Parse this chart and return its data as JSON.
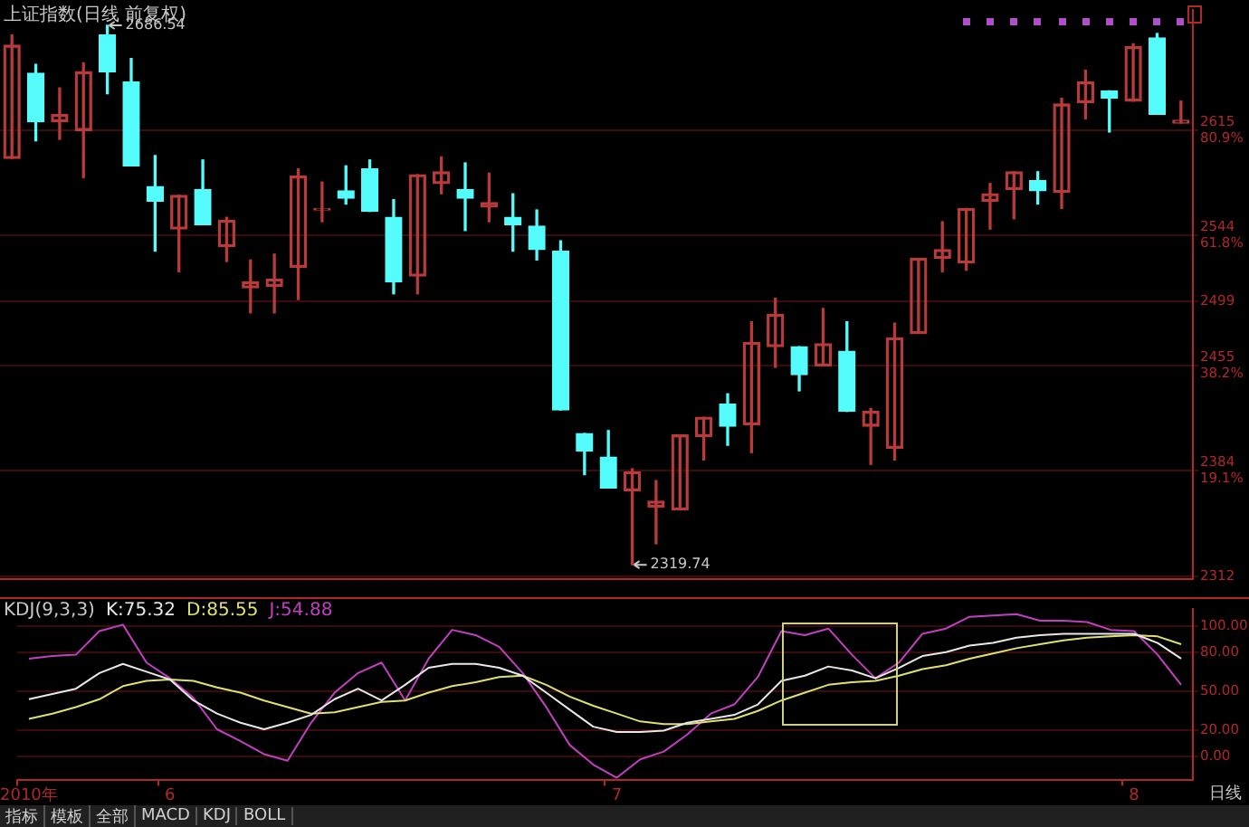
{
  "chart_data": [
    {
      "type": "candlestick",
      "title": "上证指数(日线 前复权)",
      "categories": [
        null,
        null,
        null,
        null,
        null,
        null,
        null,
        null,
        null,
        null,
        null,
        null,
        null,
        null,
        null,
        null,
        null,
        null,
        null,
        null,
        null,
        null,
        null,
        null,
        null,
        null,
        null,
        null,
        null,
        null,
        null,
        null,
        null,
        null,
        null,
        null,
        null,
        null,
        null,
        null,
        null,
        null,
        null,
        null,
        null,
        null,
        null,
        null,
        null,
        null
      ],
      "ohlc": [
        [
          2596,
          2680,
          2596,
          2673
        ],
        [
          2654,
          2660,
          2608,
          2621
        ],
        [
          2621,
          2644,
          2609,
          2626
        ],
        [
          2615,
          2661,
          2583,
          2655
        ],
        [
          2680,
          2686.54,
          2640,
          2655
        ],
        [
          2648,
          2664,
          2591,
          2591
        ],
        [
          2577,
          2598,
          2533,
          2567
        ],
        [
          2548,
          2571,
          2519,
          2571
        ],
        [
          2575,
          2595,
          2551,
          2551
        ],
        [
          2536,
          2556,
          2526,
          2554
        ],
        [
          2508,
          2527,
          2491,
          2512
        ],
        [
          2509,
          2531,
          2491,
          2514
        ],
        [
          2522,
          2589,
          2500,
          2584
        ],
        [
          2561,
          2580,
          2553,
          2562
        ],
        [
          2574,
          2591,
          2565,
          2569
        ],
        [
          2589,
          2595,
          2560,
          2560
        ],
        [
          2556,
          2568,
          2504,
          2512
        ],
        [
          2516,
          2585,
          2504,
          2585
        ],
        [
          2579,
          2597,
          2572,
          2587
        ],
        [
          2575,
          2593,
          2547,
          2569
        ],
        [
          2563,
          2586,
          2553,
          2566
        ],
        [
          2556,
          2572,
          2533,
          2551
        ],
        [
          2550,
          2561,
          2527,
          2534
        ],
        [
          2533,
          2540,
          2425,
          2425
        ],
        [
          2409,
          2409,
          2381,
          2397
        ],
        [
          2393,
          2411,
          2372,
          2372
        ],
        [
          2370,
          2385,
          2319.74,
          2383
        ],
        [
          2359,
          2377,
          2334,
          2363
        ],
        [
          2357,
          2408,
          2357,
          2408
        ],
        [
          2407,
          2420,
          2391,
          2420
        ],
        [
          2429,
          2436,
          2401,
          2414
        ],
        [
          2415,
          2485,
          2396,
          2471
        ],
        [
          2468,
          2501,
          2454,
          2490
        ],
        [
          2468,
          2468,
          2438,
          2449
        ],
        [
          2455,
          2494,
          2455,
          2470
        ],
        [
          2465,
          2485,
          2424,
          2424
        ],
        [
          2414,
          2426,
          2388,
          2424
        ],
        [
          2399,
          2484,
          2391,
          2474
        ],
        [
          2477,
          2528,
          2477,
          2528
        ],
        [
          2528,
          2553,
          2519,
          2534
        ],
        [
          2525,
          2562,
          2520,
          2562
        ],
        [
          2567,
          2579,
          2548,
          2572
        ],
        [
          2575,
          2587,
          2555,
          2587
        ],
        [
          2581,
          2587,
          2565,
          2574
        ],
        [
          2573,
          2637,
          2562,
          2633
        ],
        [
          2634,
          2656,
          2623,
          2648
        ],
        [
          2642,
          2642,
          2614,
          2637
        ],
        [
          2635,
          2674,
          2635,
          2672
        ],
        [
          2678,
          2681,
          2626,
          2626
        ],
        [
          2620,
          2635,
          2620,
          2622
        ]
      ],
      "colors": [
        "#b83a3a",
        "#54fcfc",
        "#b83a3a",
        "#b83a3a",
        "#54fcfc",
        "#54fcfc",
        "#54fcfc",
        "#b83a3a",
        "#54fcfc",
        "#b83a3a",
        "#b83a3a",
        "#b83a3a",
        "#b83a3a",
        "#b83a3a",
        "#54fcfc",
        "#54fcfc",
        "#54fcfc",
        "#b83a3a",
        "#b83a3a",
        "#54fcfc",
        "#b83a3a",
        "#54fcfc",
        "#54fcfc",
        "#54fcfc",
        "#54fcfc",
        "#54fcfc",
        "#b83a3a",
        "#b83a3a",
        "#b83a3a",
        "#b83a3a",
        "#54fcfc",
        "#b83a3a",
        "#b83a3a",
        "#54fcfc",
        "#b83a3a",
        "#54fcfc",
        "#b83a3a",
        "#b83a3a",
        "#b83a3a",
        "#b83a3a",
        "#b83a3a",
        "#b83a3a",
        "#b83a3a",
        "#54fcfc",
        "#b83a3a",
        "#b83a3a",
        "#54fcfc",
        "#b83a3a",
        "#54fcfc",
        "#b83a3a"
      ],
      "ylim": [
        2310,
        2697
      ],
      "yticks": [
        {
          "value": 2615,
          "label": "2615 80.9%"
        },
        {
          "value": 2544,
          "label": "2544 61.8%"
        },
        2499,
        {
          "value": 2455,
          "label": "2455 38.2%"
        },
        {
          "value": 2384,
          "label": "2384 19.1%"
        },
        2312
      ],
      "grid": "y",
      "tick_labels": "y",
      "annotations": [
        "2686.54",
        "2319.74"
      ]
    },
    {
      "type": "line",
      "title": "KDJ(9,3,3)",
      "categories": [
        "2010年",
        null,
        null,
        null,
        null,
        null,
        "6",
        null,
        null,
        null,
        null,
        null,
        null,
        null,
        null,
        null,
        null,
        null,
        null,
        null,
        null,
        null,
        null,
        null,
        null,
        "7",
        null,
        null,
        null,
        null,
        null,
        null,
        null,
        null,
        null,
        null,
        null,
        null,
        null,
        null,
        null,
        null,
        null,
        null,
        null,
        null,
        null,
        "8",
        null,
        null
      ],
      "series": [
        {
          "name": "K:75.32",
          "color": "#e8e8e8",
          "values": [
            44,
            48,
            52,
            64,
            71,
            65,
            59,
            43,
            33,
            26,
            21,
            26,
            32,
            44,
            52,
            43,
            55,
            68,
            71,
            71,
            68,
            62,
            49,
            36,
            23,
            19,
            19,
            20,
            26,
            29,
            32,
            40,
            58,
            62,
            69,
            66,
            60,
            68,
            77,
            80,
            85,
            87,
            91,
            93,
            94,
            94,
            94,
            94,
            87,
            75
          ]
        },
        {
          "name": "D:85.55",
          "color": "#e0e070",
          "values": [
            29,
            33,
            38,
            44,
            54,
            58,
            59,
            58,
            53,
            49,
            43,
            38,
            33,
            34,
            38,
            42,
            43,
            49,
            54,
            57,
            61,
            62,
            55,
            46,
            39,
            33,
            27,
            25,
            25,
            27,
            29,
            35,
            43,
            49,
            55,
            57,
            58,
            62,
            67,
            70,
            75,
            79,
            83,
            86,
            89,
            91,
            92,
            93,
            92,
            86
          ]
        },
        {
          "name": "J:54.88",
          "color": "#c040c0",
          "values": [
            75,
            77,
            78,
            96,
            101,
            72,
            60,
            45,
            21,
            12,
            2,
            -3,
            26,
            49,
            64,
            72,
            43,
            75,
            97,
            93,
            84,
            64,
            38,
            9,
            -6,
            -16,
            -2,
            4,
            17,
            33,
            40,
            61,
            96,
            93,
            98,
            78,
            60,
            72,
            94,
            98,
            107,
            108,
            109,
            104,
            104,
            103,
            97,
            96,
            78,
            55
          ]
        }
      ],
      "ylim": [
        -18,
        113
      ],
      "yticks": [
        {
          "value": 100,
          "label": "100.00"
        },
        {
          "value": 80,
          "label": "80.00"
        },
        {
          "value": 50,
          "label": "50.00"
        },
        {
          "value": 20,
          "label": "20.00"
        },
        {
          "value": 0,
          "label": "0.00"
        }
      ],
      "grid": "y",
      "legend": "top left",
      "marker": "none",
      "line_style": "solid",
      "annotations": [
        "日线",
        "指标",
        "模板",
        "全部",
        "MACD",
        "KDJ",
        "BOLL"
      ]
    }
  ]
}
